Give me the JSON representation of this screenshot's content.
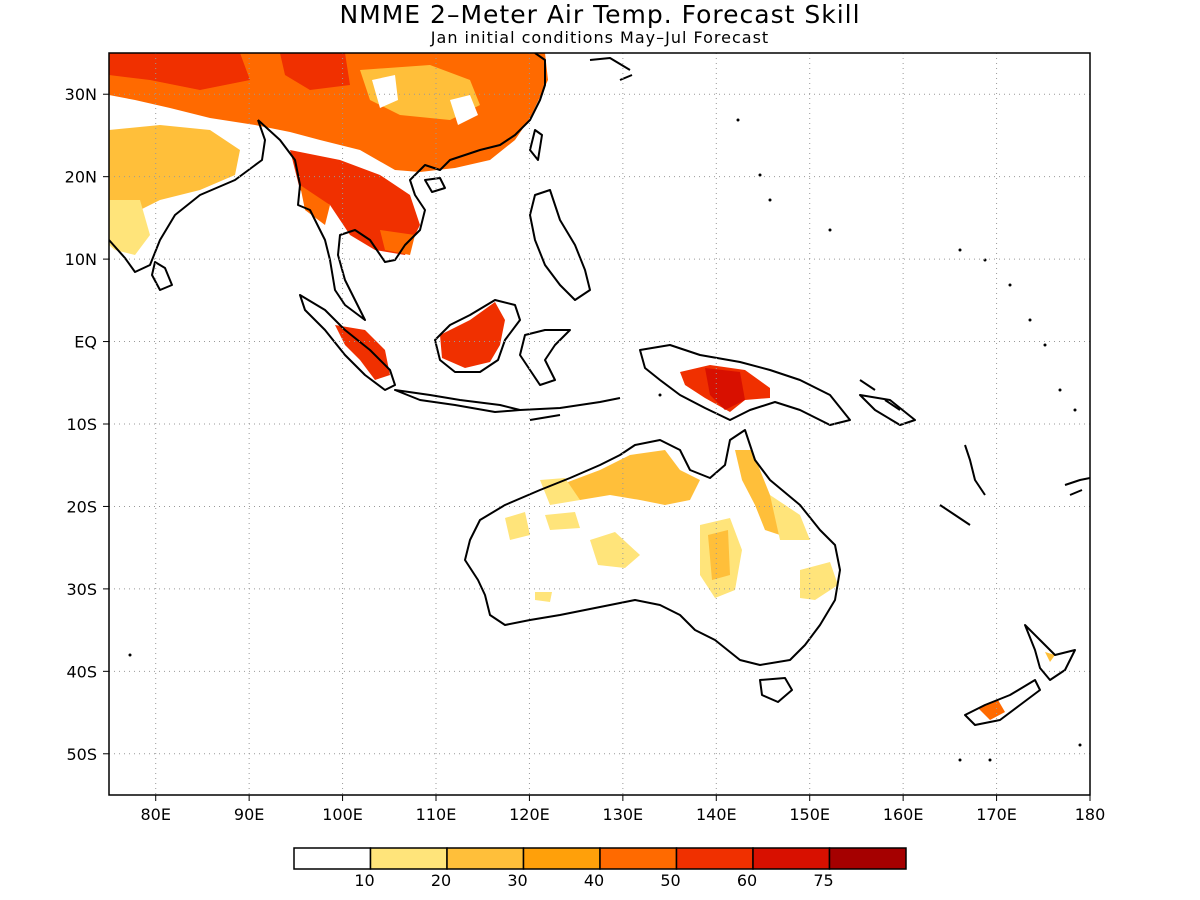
{
  "header": {
    "title": "NMME 2–Meter Air Temp. Forecast Skill",
    "subtitle": "Jan initial conditions  May–Jul Forecast"
  },
  "map": {
    "lon_range": [
      75,
      180
    ],
    "lat_range": [
      -55,
      35
    ],
    "lat_ticks": [
      {
        "lat": 30,
        "label": "30N"
      },
      {
        "lat": 20,
        "label": "20N"
      },
      {
        "lat": 10,
        "label": "10N"
      },
      {
        "lat": 0,
        "label": "EQ"
      },
      {
        "lat": -10,
        "label": "10S"
      },
      {
        "lat": -20,
        "label": "20S"
      },
      {
        "lat": -30,
        "label": "30S"
      },
      {
        "lat": -40,
        "label": "40S"
      },
      {
        "lat": -50,
        "label": "50S"
      }
    ],
    "lon_ticks": [
      {
        "lon": 80,
        "label": "80E"
      },
      {
        "lon": 90,
        "label": "90E"
      },
      {
        "lon": 100,
        "label": "100E"
      },
      {
        "lon": 110,
        "label": "110E"
      },
      {
        "lon": 120,
        "label": "120E"
      },
      {
        "lon": 130,
        "label": "130E"
      },
      {
        "lon": 140,
        "label": "140E"
      },
      {
        "lon": 150,
        "label": "150E"
      },
      {
        "lon": 160,
        "label": "160E"
      },
      {
        "lon": 170,
        "label": "170E"
      },
      {
        "lon": 180,
        "label": "180"
      }
    ]
  },
  "legend": {
    "colors": [
      "#ffffff",
      "#ffe47a",
      "#ffbf3a",
      "#ffa00a",
      "#ff6a00",
      "#f03000",
      "#d81000",
      "#a50000"
    ],
    "labels": [
      "10",
      "20",
      "30",
      "40",
      "50",
      "60",
      "75"
    ]
  }
}
